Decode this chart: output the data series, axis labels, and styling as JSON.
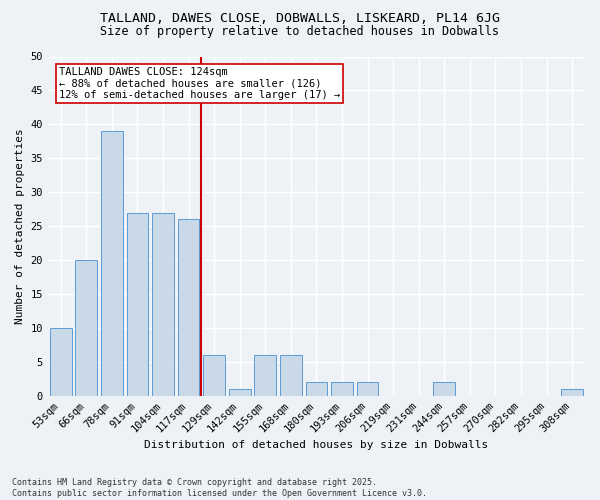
{
  "title1": "TALLAND, DAWES CLOSE, DOBWALLS, LISKEARD, PL14 6JG",
  "title2": "Size of property relative to detached houses in Dobwalls",
  "xlabel": "Distribution of detached houses by size in Dobwalls",
  "ylabel": "Number of detached properties",
  "categories": [
    "53sqm",
    "66sqm",
    "78sqm",
    "91sqm",
    "104sqm",
    "117sqm",
    "129sqm",
    "142sqm",
    "155sqm",
    "168sqm",
    "180sqm",
    "193sqm",
    "206sqm",
    "219sqm",
    "231sqm",
    "244sqm",
    "257sqm",
    "270sqm",
    "282sqm",
    "295sqm",
    "308sqm"
  ],
  "values": [
    10,
    20,
    39,
    27,
    27,
    26,
    6,
    1,
    6,
    6,
    2,
    2,
    2,
    0,
    0,
    2,
    0,
    0,
    0,
    0,
    1
  ],
  "bar_color": "#c9d9e8",
  "bar_edge_color": "#5b9bd5",
  "vline_index": 6,
  "vline_color": "#cc0000",
  "annotation_text": "TALLAND DAWES CLOSE: 124sqm\n← 88% of detached houses are smaller (126)\n12% of semi-detached houses are larger (17) →",
  "annotation_box_color": "#ffffff",
  "annotation_box_edge": "#cc0000",
  "ylim": [
    0,
    50
  ],
  "yticks": [
    0,
    5,
    10,
    15,
    20,
    25,
    30,
    35,
    40,
    45,
    50
  ],
  "footnote": "Contains HM Land Registry data © Crown copyright and database right 2025.\nContains public sector information licensed under the Open Government Licence v3.0.",
  "bg_color": "#eef2f7",
  "grid_color": "#ffffff",
  "title_fontsize": 9.5,
  "subtitle_fontsize": 8.5,
  "axis_fontsize": 8,
  "tick_fontsize": 7.5,
  "footnote_fontsize": 6,
  "annot_fontsize": 7.5
}
